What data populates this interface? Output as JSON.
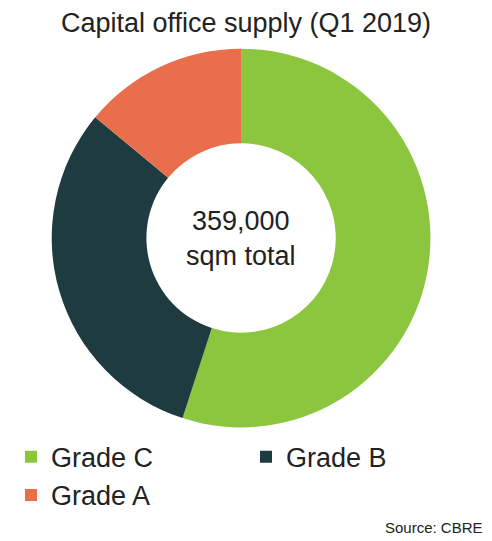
{
  "chart_data": {
    "type": "pie",
    "title": "Capital office supply (Q1 2019)",
    "center_text": [
      "359,000",
      "sqm total"
    ],
    "categories": [
      "Grade C",
      "Grade B",
      "Grade A"
    ],
    "values": [
      55,
      31,
      14
    ],
    "colors": [
      "#8cc63f",
      "#1e3c40",
      "#e96e4c"
    ],
    "data_labels": false,
    "legend": "bottom",
    "source": "Source: CBRE"
  }
}
